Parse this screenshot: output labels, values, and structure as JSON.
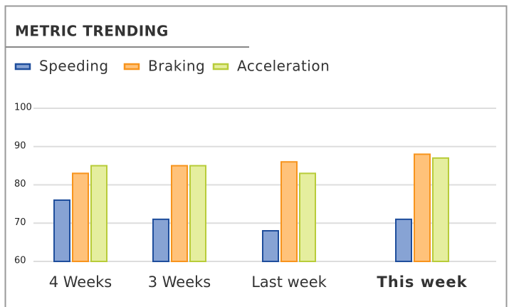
{
  "chart_data": {
    "type": "bar",
    "title": "METRIC TRENDING",
    "categories": [
      "4 Weeks",
      "3 Weeks",
      "Last week",
      "This week"
    ],
    "series": [
      {
        "name": "Speeding",
        "color": "#87a3d4",
        "values": [
          76,
          71,
          68,
          71
        ]
      },
      {
        "name": "Braking",
        "color": "#ffc27a",
        "values": [
          83,
          85,
          86,
          88
        ]
      },
      {
        "name": "Acceleration",
        "color": "#e5ee9e",
        "values": [
          85,
          85,
          83,
          87
        ]
      }
    ],
    "ylim": [
      60,
      100
    ],
    "yticks": [
      60,
      70,
      80,
      90,
      100
    ],
    "grid": true,
    "legend": "top"
  }
}
